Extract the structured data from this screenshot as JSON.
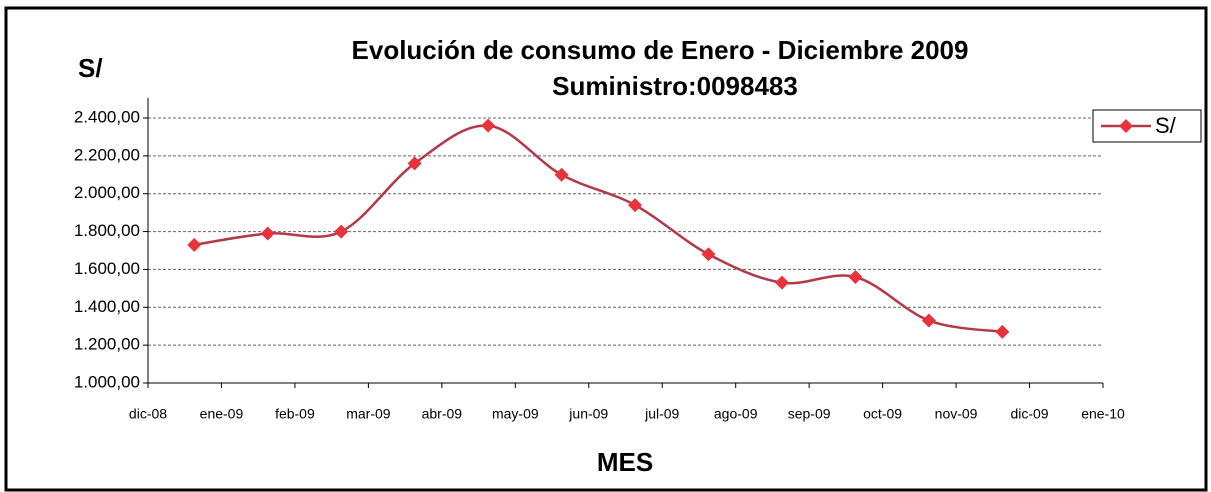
{
  "chart_data": {
    "type": "line",
    "title": "Evolución de consumo de Enero - Diciembre 2009",
    "subtitle": "Suministro:0098483",
    "y_label": "S/",
    "x_label": "MES",
    "x": [
      "ene-09",
      "feb-09",
      "mar-09",
      "abr-09",
      "may-09",
      "jun-09",
      "jul-09",
      "ago-09",
      "sep-09",
      "oct-09",
      "nov-09",
      "dic-09"
    ],
    "xticks": [
      "dic-08",
      "ene-09",
      "feb-09",
      "mar-09",
      "abr-09",
      "may-09",
      "jun-09",
      "jul-09",
      "ago-09",
      "sep-09",
      "oct-09",
      "nov-09",
      "dic-09",
      "ene-10"
    ],
    "series": [
      {
        "name": "S/",
        "color": "#e8323c",
        "line_color": "#b23a48",
        "values": [
          1730,
          1790,
          1800,
          2160,
          2360,
          2100,
          1940,
          1680,
          1530,
          1560,
          1330,
          1270
        ]
      }
    ],
    "ylim": [
      1000,
      2400
    ],
    "yticks": [
      {
        "value": 1000,
        "label": "1.000,00"
      },
      {
        "value": 1200,
        "label": "1.200,00"
      },
      {
        "value": 1400,
        "label": "1.400,00"
      },
      {
        "value": 1600,
        "label": "1.600,00"
      },
      {
        "value": 1800,
        "label": "1.800,00"
      },
      {
        "value": 2000,
        "label": "2.000,00"
      },
      {
        "value": 2200,
        "label": "2.200,00"
      },
      {
        "value": 2400,
        "label": "2.400,00"
      }
    ],
    "grid": true,
    "legend": "top-right"
  }
}
